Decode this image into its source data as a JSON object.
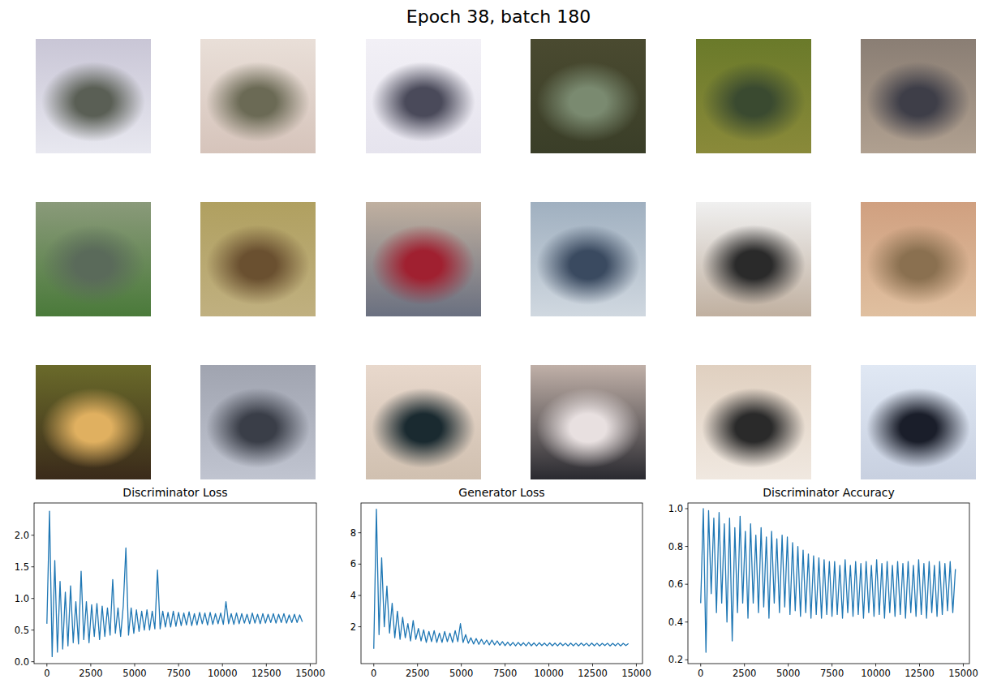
{
  "title": "Epoch 38, batch 180",
  "samples": [
    {
      "colors": [
        "#c9c6d6",
        "#5a5f55",
        "#e8e8f0"
      ]
    },
    {
      "colors": [
        "#e9dfd8",
        "#6b6a55",
        "#d6c4bb"
      ]
    },
    {
      "colors": [
        "#f2f0f6",
        "#4a4a5a",
        "#e6e4ee"
      ]
    },
    {
      "colors": [
        "#4a4a30",
        "#7a8a70",
        "#3a3e28"
      ]
    },
    {
      "colors": [
        "#6a7a2a",
        "#3a4a30",
        "#8a8a3a"
      ]
    },
    {
      "colors": [
        "#8a7e74",
        "#3e3e48",
        "#b0a090"
      ]
    },
    {
      "colors": [
        "#8a9a7a",
        "#5a6a5a",
        "#4a7a3a"
      ]
    },
    {
      "colors": [
        "#b0a060",
        "#6a5030",
        "#c0b080"
      ]
    },
    {
      "colors": [
        "#c0b0a0",
        "#a02030",
        "#6a7080"
      ]
    },
    {
      "colors": [
        "#a0b0c0",
        "#3a4a60",
        "#d0d8e0"
      ]
    },
    {
      "colors": [
        "#f0f0f0",
        "#2a2a2a",
        "#c0b0a0"
      ]
    },
    {
      "colors": [
        "#d0a080",
        "#8a7050",
        "#e0c0a0"
      ]
    },
    {
      "colors": [
        "#6a6a2a",
        "#e0b060",
        "#3a2a1a"
      ]
    },
    {
      "colors": [
        "#a0a4b0",
        "#3a3e48",
        "#c0c4d0"
      ]
    },
    {
      "colors": [
        "#e8d8cc",
        "#1a2a30",
        "#d0c0b0"
      ]
    },
    {
      "colors": [
        "#c0b0a8",
        "#e8e0e0",
        "#2a2a30"
      ]
    },
    {
      "colors": [
        "#e0d0c0",
        "#2a2a2a",
        "#f0e8e0"
      ]
    },
    {
      "colors": [
        "#e0e8f4",
        "#1a1e2a",
        "#c8d0e0"
      ]
    }
  ],
  "chart_data": [
    {
      "type": "line",
      "title": "Discriminator Loss",
      "color": "#1f77b4",
      "x": [
        0,
        150,
        300,
        450,
        600,
        750,
        900,
        1050,
        1200,
        1350,
        1500,
        1650,
        1800,
        1950,
        2100,
        2250,
        2400,
        2550,
        2700,
        2850,
        3000,
        3150,
        3300,
        3450,
        3600,
        3750,
        3900,
        4050,
        4200,
        4350,
        4500,
        4650,
        4800,
        4950,
        5100,
        5250,
        5400,
        5550,
        5700,
        5850,
        6000,
        6150,
        6300,
        6450,
        6600,
        6750,
        6900,
        7050,
        7200,
        7350,
        7500,
        7650,
        7800,
        7950,
        8100,
        8250,
        8400,
        8550,
        8700,
        8850,
        9000,
        9150,
        9300,
        9450,
        9600,
        9750,
        9900,
        10050,
        10200,
        10350,
        10500,
        10650,
        10800,
        10950,
        11100,
        11250,
        11400,
        11550,
        11700,
        11850,
        12000,
        12150,
        12300,
        12450,
        12600,
        12750,
        12900,
        13050,
        13200,
        13350,
        13500,
        13650,
        13800,
        13950,
        14100,
        14250,
        14400,
        14550
      ],
      "values": [
        0.6,
        2.38,
        0.08,
        1.6,
        0.15,
        1.27,
        0.2,
        1.1,
        0.25,
        1.2,
        0.3,
        0.95,
        0.28,
        1.43,
        0.35,
        0.95,
        0.3,
        0.9,
        0.4,
        0.92,
        0.35,
        0.88,
        0.4,
        0.85,
        0.42,
        1.3,
        0.45,
        0.85,
        0.4,
        0.88,
        1.8,
        0.42,
        0.85,
        0.45,
        0.82,
        0.48,
        0.8,
        0.5,
        0.82,
        0.5,
        0.8,
        0.52,
        1.45,
        0.52,
        0.8,
        0.55,
        0.78,
        0.55,
        0.8,
        0.56,
        0.78,
        0.57,
        0.77,
        0.58,
        0.79,
        0.57,
        0.76,
        0.58,
        0.78,
        0.6,
        0.77,
        0.58,
        0.78,
        0.59,
        0.76,
        0.6,
        0.77,
        0.59,
        0.95,
        0.6,
        0.76,
        0.59,
        0.77,
        0.6,
        0.76,
        0.61,
        0.75,
        0.6,
        0.77,
        0.61,
        0.75,
        0.6,
        0.76,
        0.61,
        0.75,
        0.62,
        0.76,
        0.61,
        0.75,
        0.62,
        0.76,
        0.61,
        0.74,
        0.62,
        0.75,
        0.62,
        0.74,
        0.63
      ],
      "xlim": [
        -730,
        15350
      ],
      "xticks": [
        0,
        2500,
        5000,
        7500,
        10000,
        12500,
        15000
      ],
      "ylim": [
        -0.03,
        2.51
      ],
      "yticks": [
        {
          "value": 0,
          "label": "0.0"
        },
        {
          "value": 0.5,
          "label": "0.5"
        },
        {
          "value": 1,
          "label": "1.0"
        },
        {
          "value": 1.5,
          "label": "1.5"
        },
        {
          "value": 2,
          "label": "2.0"
        }
      ]
    },
    {
      "type": "line",
      "title": "Generator Loss",
      "color": "#1f77b4",
      "x": [
        0,
        150,
        300,
        450,
        600,
        750,
        900,
        1050,
        1200,
        1350,
        1500,
        1650,
        1800,
        1950,
        2100,
        2250,
        2400,
        2550,
        2700,
        2850,
        3000,
        3150,
        3300,
        3450,
        3600,
        3750,
        3900,
        4050,
        4200,
        4350,
        4500,
        4650,
        4800,
        4950,
        5100,
        5250,
        5400,
        5550,
        5700,
        5850,
        6000,
        6150,
        6300,
        6450,
        6600,
        6750,
        6900,
        7050,
        7200,
        7350,
        7500,
        7650,
        7800,
        7950,
        8100,
        8250,
        8400,
        8550,
        8700,
        8850,
        9000,
        9150,
        9300,
        9450,
        9600,
        9750,
        9900,
        10050,
        10200,
        10350,
        10500,
        10650,
        10800,
        10950,
        11100,
        11250,
        11400,
        11550,
        11700,
        11850,
        12000,
        12150,
        12300,
        12450,
        12600,
        12750,
        12900,
        13050,
        13200,
        13350,
        13500,
        13650,
        13800,
        13950,
        14100,
        14250,
        14400,
        14550
      ],
      "values": [
        0.6,
        9.5,
        1.5,
        6.4,
        2.0,
        4.6,
        1.6,
        3.5,
        1.3,
        3.0,
        1.2,
        2.6,
        1.3,
        2.2,
        1.1,
        2.4,
        1.2,
        1.9,
        1.1,
        1.8,
        1.0,
        1.7,
        1.05,
        1.75,
        1.0,
        1.6,
        1.0,
        1.7,
        1.05,
        1.6,
        1.0,
        1.75,
        1.05,
        2.2,
        1.0,
        1.5,
        0.95,
        1.3,
        0.9,
        1.25,
        0.88,
        1.2,
        0.88,
        1.15,
        0.85,
        1.15,
        0.85,
        1.1,
        0.82,
        1.05,
        0.8,
        1.02,
        0.8,
        1.0,
        0.78,
        1.0,
        0.8,
        0.98,
        0.78,
        1.0,
        0.79,
        0.97,
        0.78,
        0.98,
        0.8,
        0.96,
        0.78,
        0.97,
        0.79,
        0.96,
        0.78,
        0.97,
        0.8,
        0.95,
        0.78,
        0.96,
        0.79,
        0.95,
        0.78,
        0.96,
        0.8,
        0.95,
        0.78,
        0.96,
        0.79,
        0.95,
        0.78,
        0.94,
        0.8,
        0.95,
        0.78,
        0.94,
        0.79,
        0.95,
        0.78,
        0.94,
        0.8,
        0.93
      ],
      "xlim": [
        -730,
        15350
      ],
      "xticks": [
        0,
        2500,
        5000,
        7500,
        10000,
        12500,
        15000
      ],
      "ylim": [
        -0.35,
        9.9
      ],
      "yticks": [
        2,
        4,
        6,
        8
      ]
    },
    {
      "type": "line",
      "title": "Discriminator Accuracy",
      "color": "#1f77b4",
      "x": [
        0,
        150,
        300,
        450,
        600,
        750,
        900,
        1050,
        1200,
        1350,
        1500,
        1650,
        1800,
        1950,
        2100,
        2250,
        2400,
        2550,
        2700,
        2850,
        3000,
        3150,
        3300,
        3450,
        3600,
        3750,
        3900,
        4050,
        4200,
        4350,
        4500,
        4650,
        4800,
        4950,
        5100,
        5250,
        5400,
        5550,
        5700,
        5850,
        6000,
        6150,
        6300,
        6450,
        6600,
        6750,
        6900,
        7050,
        7200,
        7350,
        7500,
        7650,
        7800,
        7950,
        8100,
        8250,
        8400,
        8550,
        8700,
        8850,
        9000,
        9150,
        9300,
        9450,
        9600,
        9750,
        9900,
        10050,
        10200,
        10350,
        10500,
        10650,
        10800,
        10950,
        11100,
        11250,
        11400,
        11550,
        11700,
        11850,
        12000,
        12150,
        12300,
        12450,
        12600,
        12750,
        12900,
        13050,
        13200,
        13350,
        13500,
        13650,
        13800,
        13950,
        14100,
        14250,
        14400,
        14550
      ],
      "values": [
        0.5,
        1.0,
        0.24,
        0.99,
        0.55,
        0.95,
        0.45,
        0.98,
        0.5,
        0.92,
        0.4,
        0.95,
        0.3,
        0.9,
        0.45,
        0.96,
        0.5,
        0.88,
        0.42,
        0.92,
        0.5,
        0.86,
        0.45,
        0.9,
        0.48,
        0.85,
        0.42,
        0.88,
        0.5,
        0.84,
        0.45,
        0.86,
        0.48,
        0.85,
        0.44,
        0.82,
        0.46,
        0.8,
        0.43,
        0.78,
        0.45,
        0.76,
        0.42,
        0.75,
        0.44,
        0.74,
        0.42,
        0.73,
        0.44,
        0.72,
        0.43,
        0.72,
        0.44,
        0.7,
        0.42,
        0.73,
        0.45,
        0.7,
        0.43,
        0.72,
        0.44,
        0.71,
        0.42,
        0.72,
        0.45,
        0.7,
        0.43,
        0.73,
        0.44,
        0.71,
        0.42,
        0.72,
        0.45,
        0.7,
        0.43,
        0.72,
        0.44,
        0.71,
        0.42,
        0.72,
        0.45,
        0.7,
        0.43,
        0.73,
        0.44,
        0.71,
        0.42,
        0.72,
        0.45,
        0.7,
        0.43,
        0.72,
        0.44,
        0.71,
        0.46,
        0.72,
        0.45,
        0.68
      ],
      "xlim": [
        -730,
        15350
      ],
      "xticks": [
        0,
        2500,
        5000,
        7500,
        10000,
        12500,
        15000
      ],
      "ylim": [
        0.18,
        1.03
      ],
      "yticks": [
        {
          "value": 0.2,
          "label": "0.2"
        },
        {
          "value": 0.4,
          "label": "0.4"
        },
        {
          "value": 0.6,
          "label": "0.6"
        },
        {
          "value": 0.8,
          "label": "0.8"
        },
        {
          "value": 1,
          "label": "1.0"
        }
      ]
    }
  ]
}
